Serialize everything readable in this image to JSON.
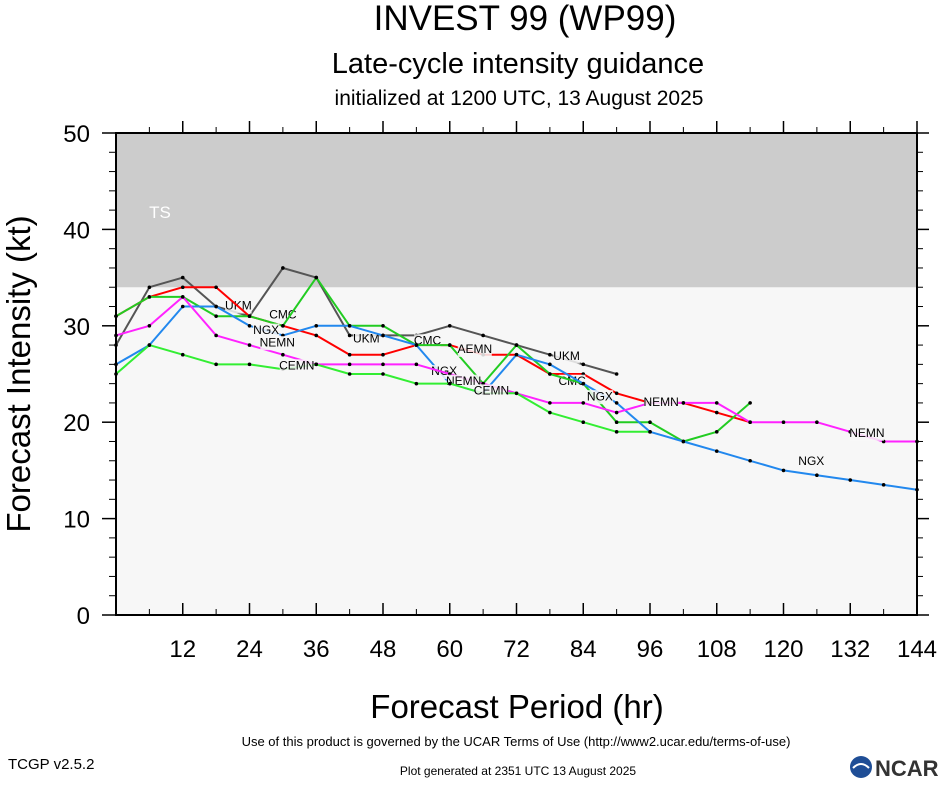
{
  "chart_data": {
    "type": "line",
    "title": "INVEST 99 (WP99)",
    "subtitle": "Late-cycle intensity guidance",
    "init_line": "initialized at 1200 UTC, 13 August 2025",
    "xlabel": "Forecast Period (hr)",
    "ylabel": "Forecast Intensity (kt)",
    "xlim": [
      0,
      144
    ],
    "ylim": [
      0,
      50
    ],
    "xticks": [
      12,
      24,
      36,
      48,
      60,
      72,
      84,
      96,
      108,
      120,
      132,
      144
    ],
    "yticks": [
      0,
      10,
      20,
      30,
      40,
      50
    ],
    "grid": false,
    "legend": "none",
    "band": {
      "label": "TS",
      "y_from": 34,
      "y_to": 50,
      "color": "#cccccc"
    },
    "plot_background": "#f7f7f7",
    "series": [
      {
        "name": "UKM",
        "color": "#555555",
        "x": [
          0,
          6,
          12,
          18,
          24,
          30,
          36,
          42,
          48,
          54,
          60,
          66,
          72,
          78,
          84,
          90
        ],
        "y": [
          28,
          34,
          35,
          32,
          31,
          36,
          35,
          29,
          29,
          29,
          30,
          29,
          28,
          27,
          26,
          25
        ],
        "labels": [
          {
            "text": "UKM",
            "x": 22,
            "y": 32
          },
          {
            "text": "UKM",
            "x": 45,
            "y": 28.6
          },
          {
            "text": "UKM",
            "x": 81,
            "y": 26.8
          }
        ]
      },
      {
        "name": "CMC",
        "color": "#ff0000",
        "x": [
          0,
          6,
          12,
          18,
          24,
          30,
          36,
          42,
          48,
          54,
          60,
          66,
          72,
          78,
          84,
          90,
          96,
          102,
          108,
          114
        ],
        "y": [
          31,
          33,
          34,
          34,
          31,
          30,
          29,
          27,
          27,
          28,
          28,
          27,
          27,
          25,
          25,
          23,
          22,
          22,
          21,
          20
        ],
        "labels": [
          {
            "text": "CMC",
            "x": 30,
            "y": 31.1
          },
          {
            "text": "CMC",
            "x": 56,
            "y": 28.4
          },
          {
            "text": "CMC",
            "x": 82,
            "y": 24.2
          }
        ]
      },
      {
        "name": "AEMN",
        "color": "#22cc22",
        "x": [
          0,
          6,
          12,
          18,
          24,
          30,
          36,
          42,
          48,
          54,
          60,
          66,
          72,
          78,
          84,
          90,
          96,
          102,
          108,
          114
        ],
        "y": [
          31,
          33,
          33,
          31,
          31,
          30,
          35,
          30,
          30,
          28,
          28,
          24,
          28,
          25,
          24,
          20,
          20,
          18,
          19,
          22
        ],
        "labels": [
          {
            "text": "AEMN",
            "x": 64.5,
            "y": 27.5
          }
        ]
      },
      {
        "name": "NGX",
        "color": "#2288ee",
        "x": [
          0,
          6,
          12,
          18,
          24,
          30,
          36,
          42,
          48,
          54,
          60,
          66,
          72,
          78,
          84,
          90,
          96,
          102,
          108,
          114,
          120,
          126,
          132,
          138,
          144
        ],
        "y": [
          26,
          28,
          32,
          32,
          30,
          29,
          30,
          30,
          29,
          28,
          24,
          23,
          27,
          26,
          24,
          22,
          19,
          18,
          17,
          16,
          15,
          14.5,
          14,
          13.5,
          13
        ],
        "labels": [
          {
            "text": "NGX",
            "x": 27,
            "y": 29.5
          },
          {
            "text": "NGX",
            "x": 59,
            "y": 25.2
          },
          {
            "text": "NGX",
            "x": 87,
            "y": 22.6
          },
          {
            "text": "NGX",
            "x": 125,
            "y": 15.9
          }
        ]
      },
      {
        "name": "NEMN",
        "color": "#ff22ff",
        "x": [
          0,
          6,
          12,
          18,
          24,
          30,
          36,
          42,
          48,
          54,
          60,
          66,
          72,
          78,
          84,
          90,
          96,
          102,
          108,
          114,
          120,
          126,
          132,
          138,
          144
        ],
        "y": [
          29,
          30,
          33,
          29,
          28,
          27,
          26,
          26,
          26,
          26,
          25,
          24,
          23,
          22,
          22,
          21,
          22,
          22,
          22,
          20,
          20,
          20,
          19,
          18,
          18
        ],
        "labels": [
          {
            "text": "NEMN",
            "x": 29,
            "y": 28.2
          },
          {
            "text": "NEMN",
            "x": 62.5,
            "y": 24.2
          },
          {
            "text": "NEMN",
            "x": 98,
            "y": 22
          },
          {
            "text": "NEMN",
            "x": 135,
            "y": 18.8
          }
        ]
      },
      {
        "name": "CEMN",
        "color": "#33ee33",
        "x": [
          0,
          6,
          12,
          18,
          24,
          30,
          36,
          42,
          48,
          54,
          60,
          66,
          72,
          78,
          84,
          90,
          96
        ],
        "y": [
          25,
          28,
          27,
          26,
          26,
          25.5,
          26,
          25,
          25,
          24,
          24,
          23,
          23,
          21,
          20,
          19,
          19
        ],
        "labels": [
          {
            "text": "CEMN",
            "x": 32.5,
            "y": 25.8
          },
          {
            "text": "CEMN",
            "x": 67.5,
            "y": 23.2
          }
        ]
      }
    ]
  },
  "footer": {
    "version": "TCGP v2.5.2",
    "terms": "Use of this product is governed by the UCAR Terms of Use (http://www2.ucar.edu/terms-of-use)",
    "generated": "Plot generated at 2351 UTC   13 August 2025",
    "logo_text": "NCAR"
  }
}
